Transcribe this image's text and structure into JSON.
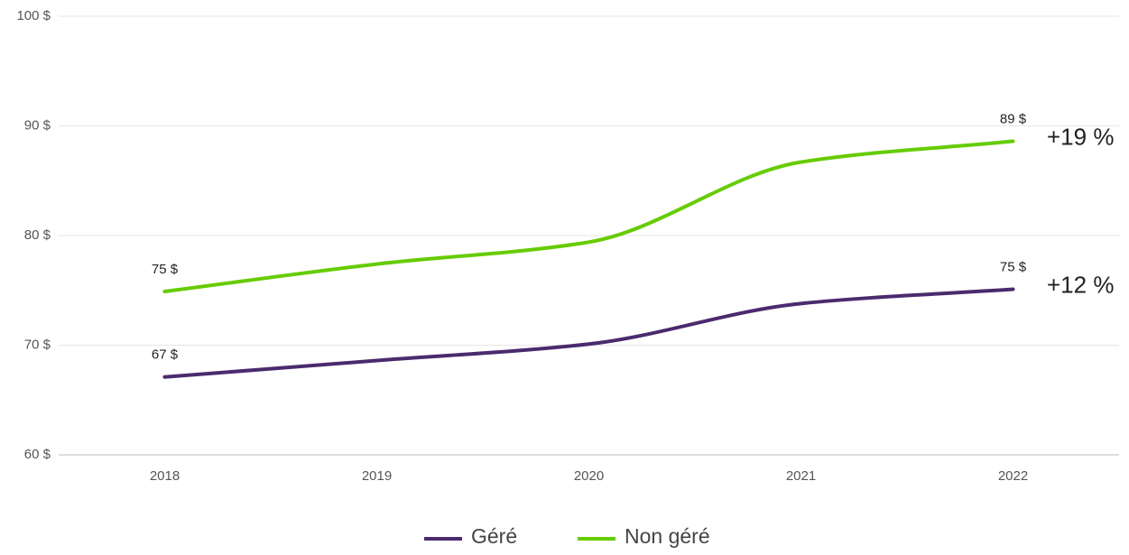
{
  "chart_data": {
    "type": "line",
    "categories": [
      "2018",
      "2019",
      "2020",
      "2021",
      "2022"
    ],
    "series": [
      {
        "name": "Géré",
        "color": "#4b2a6e",
        "values": [
          67.1,
          68.6,
          70.1,
          73.8,
          75.1
        ],
        "value_labels": [
          "67 $",
          null,
          null,
          null,
          "75 $"
        ],
        "change_label": "+12 %"
      },
      {
        "name": "Non géré",
        "color": "#66cc00",
        "values": [
          74.9,
          77.4,
          79.4,
          86.7,
          88.6
        ],
        "value_labels": [
          "75 $",
          null,
          null,
          null,
          "89 $"
        ],
        "change_label": "+19 %"
      }
    ],
    "ylim": [
      60,
      100
    ],
    "yticks": [
      {
        "value": 60,
        "label": "60 $"
      },
      {
        "value": 70,
        "label": "70 $"
      },
      {
        "value": 80,
        "label": "80 $"
      },
      {
        "value": 90,
        "label": "90 $"
      },
      {
        "value": 100,
        "label": "100 $"
      }
    ],
    "grid": true,
    "legend": "bottom"
  }
}
